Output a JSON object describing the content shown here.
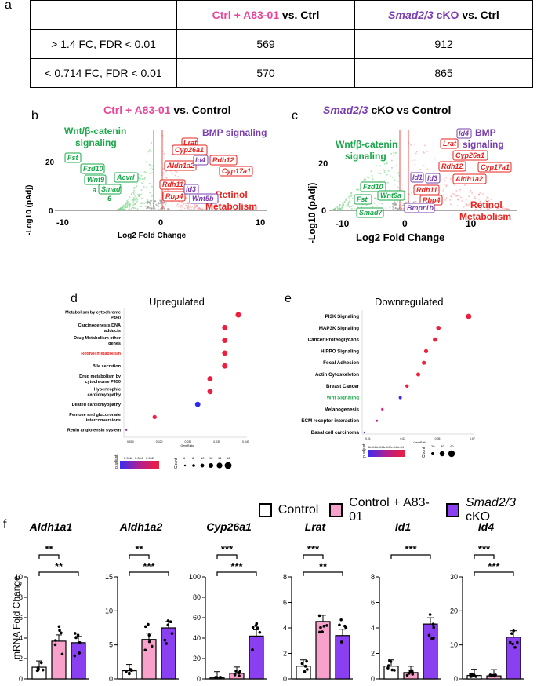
{
  "panel_labels": {
    "a": "a",
    "b": "b",
    "c": "c",
    "d": "d",
    "e": "e",
    "f": "f"
  },
  "table": {
    "header_ctrl_a83": "Ctrl + A83-01",
    "header_vs_ctrl": " vs. Ctrl",
    "header_smad": "Smad2/3",
    "header_smad_ko": " cKO",
    "header_vs_ctrl2": " vs. Ctrl",
    "rows": [
      {
        "criterion": "> 1.4 FC, FDR < 0.01",
        "a83": "569",
        "smad": "912"
      },
      {
        "criterion": "< 0.714 FC, FDR < 0.01",
        "a83": "570",
        "smad": "865"
      }
    ]
  },
  "volcano_b": {
    "title_ctrl": "Ctrl + A83-01",
    "title_vs": " vs. Control",
    "ylabel": "-Log10 (pAdj)",
    "xlabel": "Log2 Fold Change",
    "wnt_label": "Wnt/β-catenin signaling",
    "wnt_line1": "Wnt/β-catenin",
    "wnt_line2": "signaling",
    "bmp_label": "BMP signaling",
    "retinol_line1": "Retinol",
    "retinol_line2": "Metabolism",
    "ytick": "20",
    "ytick0": "0",
    "xticks": [
      "-10",
      "0",
      "10"
    ],
    "genes_green": [
      "Fst",
      "Fzd10",
      "Wnt9",
      "a",
      "Acvrl",
      "Smad",
      "6"
    ],
    "genes_red": [
      "Lrat",
      "Cyp26a1",
      "Aldh1a2",
      "Rdh12",
      "Rdh11",
      "Rbp4",
      "Cyp17a1"
    ],
    "genes_purple": [
      "Id4",
      "Id3",
      "Wnt5b"
    ]
  },
  "volcano_c": {
    "title_smad": "Smad2/3",
    "title_rest": " cKO vs Control",
    "ylabel": "-Log10 (pAdj)",
    "xlabel": "Log2 Fold Change",
    "wnt_line1": "Wnt/β-catenin",
    "wnt_line2": "signaling",
    "bmp_line1": "BMP",
    "bmp_line2": "signaling",
    "retinol_line1": "Retinol",
    "retinol_line2": "Metabolism",
    "ytick": "20",
    "ytick0": "0",
    "xticks": [
      "-10",
      "0",
      "10"
    ],
    "genes_green": [
      "Fzd10",
      "Fst",
      "Wnt9a",
      "Smad7"
    ],
    "genes_red": [
      "Lrat",
      "Cyp26a1",
      "Rdh12",
      "Cyp17a1",
      "Aldh1a2",
      "Rdh11",
      "Rbp4"
    ],
    "genes_purple": [
      "Id4",
      "Id1",
      "Id3",
      "Bmpr1b"
    ]
  },
  "dot_d": {
    "title": "Upregulated",
    "terms": [
      "Metabolism by cytochrome P450",
      "Carcinogenesis DNA adducts",
      "Drug Metabolism other genes",
      "Retinol metabolism",
      "Bile secretion",
      "Drug metabolism by cytochrome P450",
      "Hypertrophic cardiomyopathy",
      "Dilated cardiomyopathy",
      "Pentose and glucoronate interconversions",
      "Renin angiotensin system"
    ],
    "legend_title": "p.adjust",
    "legend_ticks": [
      "0.006",
      "0.004",
      "0.002"
    ],
    "count_title": "Count",
    "count_ticks": [
      "6",
      "8",
      "10",
      "12",
      "14",
      "16"
    ],
    "xticks": [
      "0.010",
      "0.020",
      "0.030",
      "0.035",
      "0.040"
    ],
    "xlabel": "GeneRatio",
    "colors": {
      "highlight": "#e8231e"
    }
  },
  "dot_e": {
    "title": "Downregulated",
    "terms": [
      "PI3K Signaling",
      "MAP3K Signaling",
      "Cancer Proteoglycans",
      "HIPPO Signaling",
      "Focal Adhesion",
      "Actin Cytoskeleton",
      "Breast Cancer",
      "Wnt Signaling",
      "Melanogenesis",
      "ECM receptor interaction",
      "Basal cell carcinoma"
    ],
    "legend_title": "p.adjust",
    "legend_ticks": [
      "8e-04",
      "6e-04",
      "4e-04",
      "2e-04",
      "1e-04"
    ],
    "count_title": "Count",
    "count_ticks": [
      "20",
      "30",
      "40"
    ],
    "xticks": [
      "0.01",
      "0.02",
      "0.05",
      "0.07"
    ],
    "xlabel": "GeneRatio",
    "colors": {
      "highlight": "#1aa84a"
    }
  },
  "legend_f": {
    "control": "Control",
    "a83": "Control + A83-01",
    "smad": "Smad2/3",
    "smad_suffix": " cKO"
  },
  "bar_axis_label": "mRNA Fold Change",
  "chart_data": [
    {
      "type": "bar",
      "title": "Aldh1a1",
      "categories": [
        "Control",
        "Control + A83-01",
        "Smad2/3 cKO"
      ],
      "values": [
        1.15,
        3.7,
        3.55
      ],
      "ylim": [
        0,
        10
      ],
      "yticks": [
        "0",
        "2",
        "4",
        "6",
        "8",
        "10"
      ],
      "sig": [
        "**",
        "**"
      ]
    },
    {
      "type": "bar",
      "title": "Aldh1a2",
      "categories": [
        "Control",
        "Control + A83-01",
        "Smad2/3 cKO"
      ],
      "values": [
        1.2,
        5.8,
        7.5
      ],
      "ylim": [
        0,
        15
      ],
      "yticks": [
        "0",
        "5",
        "10",
        "15"
      ],
      "sig": [
        "**",
        "***"
      ]
    },
    {
      "type": "bar",
      "title": "Cyp26a1",
      "categories": [
        "Control",
        "Control + A83-01",
        "Smad2/3 cKO"
      ],
      "values": [
        1.0,
        5.5,
        42
      ],
      "ylim": [
        0,
        100
      ],
      "yticks": [
        "0",
        "20",
        "40",
        "60",
        "80",
        "100"
      ],
      "sig": [
        "***",
        "***"
      ]
    },
    {
      "type": "bar",
      "title": "Lrat",
      "categories": [
        "Control",
        "Control + A83-01",
        "Smad2/3 cKO"
      ],
      "values": [
        1.0,
        4.5,
        3.4
      ],
      "ylim": [
        0,
        8
      ],
      "yticks": [
        "0",
        "2",
        "4",
        "6",
        "8"
      ],
      "sig": [
        "***",
        "**"
      ]
    },
    {
      "type": "bar",
      "title": "Id1",
      "categories": [
        "Control",
        "Control + A83-01",
        "Smad2/3 cKO"
      ],
      "values": [
        1.0,
        0.5,
        4.3
      ],
      "ylim": [
        0,
        8
      ],
      "yticks": [
        "0",
        "2",
        "4",
        "6",
        "8"
      ],
      "sig": [
        "***"
      ]
    },
    {
      "type": "bar",
      "title": "Id4",
      "categories": [
        "Control",
        "Control + A83-01",
        "Smad2/3 cKO"
      ],
      "values": [
        1.0,
        0.9,
        12.3
      ],
      "ylim": [
        0,
        30
      ],
      "yticks": [
        "0",
        "10",
        "20",
        "30"
      ],
      "sig": [
        "***",
        "***"
      ]
    }
  ],
  "bar_colors": {
    "control": "#ffffff",
    "a83": "#f7a1cb",
    "smad": "#8a3ff0"
  }
}
